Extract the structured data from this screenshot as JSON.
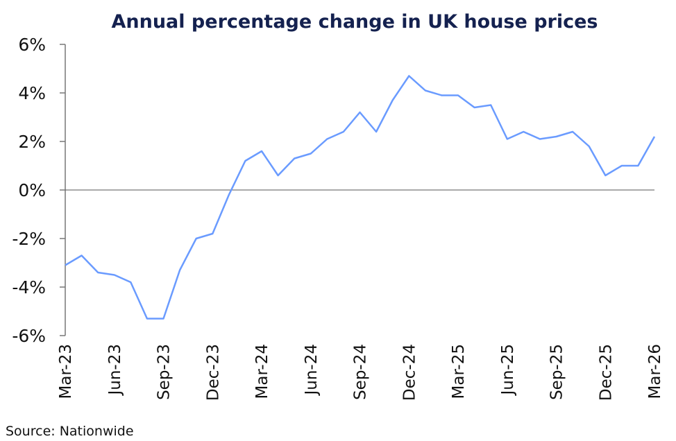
{
  "chart_data": {
    "type": "line",
    "title": "Annual percentage change in UK house prices",
    "source": "Source: Nationwide",
    "xlabel": "",
    "ylabel": "",
    "ylim": [
      -6,
      6
    ],
    "yticks": [
      6,
      4,
      2,
      0,
      -2,
      -4,
      -6
    ],
    "ytick_labels": [
      "6%",
      "4%",
      "2%",
      "0%",
      "-2%",
      "-4%",
      "-6%"
    ],
    "xtick_labels": [
      "Mar-23",
      "Jun-23",
      "Sep-23",
      "Dec-23",
      "Mar-24",
      "Jun-24",
      "Sep-24",
      "Dec-24",
      "Mar-25",
      "Jun-25",
      "Sep-25",
      "Dec-25",
      "Mar-26"
    ],
    "x": [
      "Mar-23",
      "Apr-23",
      "May-23",
      "Jun-23",
      "Jul-23",
      "Aug-23",
      "Sep-23",
      "Oct-23",
      "Nov-23",
      "Dec-23",
      "Jan-24",
      "Feb-24",
      "Mar-24",
      "Apr-24",
      "May-24",
      "Jun-24",
      "Jul-24",
      "Aug-24",
      "Sep-24",
      "Oct-24",
      "Nov-24",
      "Dec-24",
      "Jan-25",
      "Feb-25",
      "Mar-25",
      "Apr-25",
      "May-25",
      "Jun-25",
      "Jul-25",
      "Aug-25",
      "Sep-25",
      "Oct-25",
      "Nov-25",
      "Dec-25",
      "Jan-26",
      "Feb-26",
      "Mar-26"
    ],
    "series": [
      {
        "values": [
          -3.1,
          -2.7,
          -3.4,
          -3.5,
          -3.8,
          -5.3,
          -5.3,
          -3.3,
          -2.0,
          -1.8,
          -0.2,
          1.2,
          1.6,
          0.6,
          1.3,
          1.5,
          2.1,
          2.4,
          3.2,
          2.4,
          3.7,
          4.7,
          4.1,
          3.9,
          3.9,
          3.4,
          3.5,
          2.1,
          2.4,
          2.1,
          2.2,
          2.4,
          1.8,
          0.6,
          1.0,
          1.0,
          2.2
        ],
        "color": "#6a9bff"
      }
    ],
    "grid": false,
    "zero_line": true,
    "legend": "none"
  }
}
